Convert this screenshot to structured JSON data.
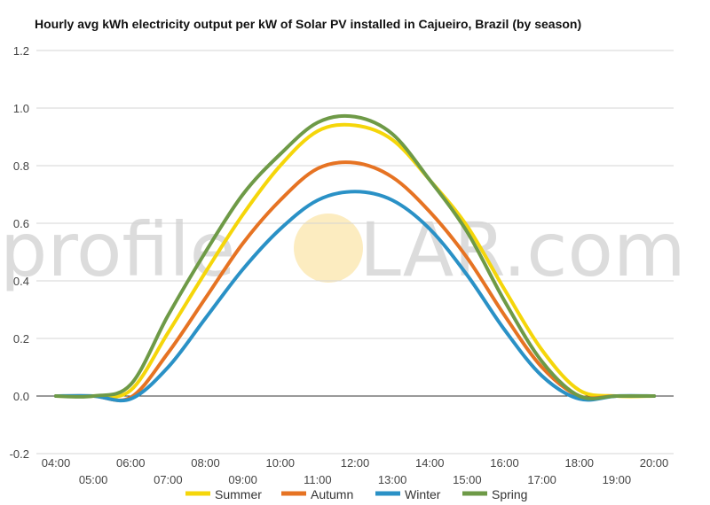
{
  "watermark": {
    "part1": "profile",
    "part2": "LAR.com",
    "sun_color": "#fcecc0"
  },
  "chart_data": {
    "type": "line",
    "title": "Hourly avg kWh electricity output per kW of Solar PV installed in Cajueiro, Brazil (by season)",
    "xlabel": "",
    "ylabel": "",
    "ylim": [
      -0.2,
      1.2
    ],
    "yticks": [
      "-0.2",
      "0.0",
      "0.2",
      "0.4",
      "0.6",
      "0.8",
      "1.0",
      "1.2"
    ],
    "grid": true,
    "legend_position": "bottom",
    "categories": [
      "04:00",
      "05:00",
      "06:00",
      "07:00",
      "08:00",
      "09:00",
      "10:00",
      "11:00",
      "12:00",
      "13:00",
      "14:00",
      "15:00",
      "16:00",
      "17:00",
      "18:00",
      "19:00",
      "20:00"
    ],
    "series": [
      {
        "name": "Summer",
        "color": "#f5d60a",
        "values": [
          0,
          0,
          0.02,
          0.22,
          0.43,
          0.63,
          0.8,
          0.92,
          0.94,
          0.89,
          0.75,
          0.59,
          0.37,
          0.16,
          0.02,
          0,
          0
        ]
      },
      {
        "name": "Autumn",
        "color": "#e67323",
        "values": [
          0,
          0,
          -0.005,
          0.15,
          0.34,
          0.53,
          0.68,
          0.79,
          0.81,
          0.76,
          0.64,
          0.48,
          0.28,
          0.1,
          0,
          0,
          0
        ]
      },
      {
        "name": "Winter",
        "color": "#2a91c6",
        "values": [
          0,
          0,
          -0.01,
          0.1,
          0.27,
          0.44,
          0.58,
          0.68,
          0.71,
          0.68,
          0.58,
          0.42,
          0.23,
          0.07,
          -0.01,
          0,
          0
        ]
      },
      {
        "name": "Spring",
        "color": "#6e9a47",
        "values": [
          0,
          0,
          0.04,
          0.28,
          0.5,
          0.7,
          0.84,
          0.95,
          0.97,
          0.91,
          0.75,
          0.57,
          0.33,
          0.12,
          0,
          0,
          0
        ]
      }
    ]
  }
}
